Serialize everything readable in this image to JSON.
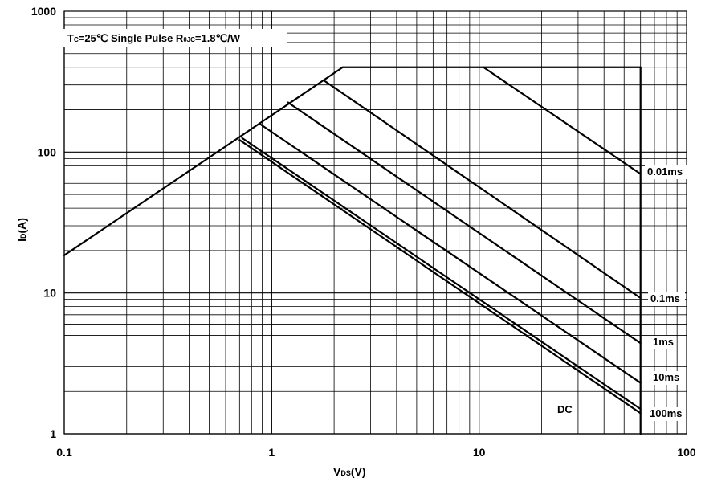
{
  "chart_data": {
    "type": "line",
    "x_scale": "log",
    "y_scale": "log",
    "xlim": [
      0.1,
      100
    ],
    "ylim": [
      1,
      1000
    ],
    "grid": true,
    "xlabel": {
      "main": "V",
      "sub": "DS",
      "unit": "(V)"
    },
    "ylabel": {
      "main": "I",
      "sub": "D",
      "unit": "(A)"
    },
    "x_ticks": [
      {
        "value": 0.1,
        "label": "0.1"
      },
      {
        "value": 1,
        "label": "1"
      },
      {
        "value": 10,
        "label": "10"
      },
      {
        "value": 100,
        "label": "100"
      }
    ],
    "y_ticks": [
      {
        "value": 1,
        "label": "1"
      },
      {
        "value": 10,
        "label": "10"
      },
      {
        "value": 100,
        "label": "100"
      },
      {
        "value": 1000,
        "label": "1000"
      }
    ],
    "conditions": {
      "tc_main": "T",
      "tc_sub": "C",
      "tc_rest": "=25℃ Single Pulse R",
      "r_sub": "θJC",
      "r_rest": "=1.8℃/W"
    },
    "rds_on_limit": {
      "x": [
        0.1,
        2.2
      ],
      "y": [
        18.5,
        400
      ]
    },
    "current_limit": {
      "x": [
        2.2,
        60
      ],
      "y": [
        400,
        400
      ]
    },
    "voltage_limit": {
      "x": [
        60,
        60
      ],
      "y": [
        400,
        1
      ]
    },
    "series": [
      {
        "name": "0.01ms",
        "x": [
          10.5,
          60
        ],
        "y": [
          400,
          70
        ]
      },
      {
        "name": "0.1ms",
        "x": [
          1.8,
          60
        ],
        "y": [
          320,
          9.2
        ]
      },
      {
        "name": "1ms",
        "x": [
          1.2,
          60
        ],
        "y": [
          225,
          4.4
        ]
      },
      {
        "name": "10ms",
        "x": [
          0.88,
          60
        ],
        "y": [
          158,
          2.3
        ]
      },
      {
        "name": "100ms",
        "x": [
          0.72,
          60
        ],
        "y": [
          126,
          1.5
        ]
      },
      {
        "name": "DC",
        "x": [
          0.7,
          60
        ],
        "y": [
          122,
          1.4
        ]
      }
    ],
    "curve_labels": [
      {
        "text": "0.01ms"
      },
      {
        "text": "0.1ms"
      },
      {
        "text": "1ms"
      },
      {
        "text": "10ms"
      },
      {
        "text": "DC"
      },
      {
        "text": "100ms"
      }
    ]
  }
}
